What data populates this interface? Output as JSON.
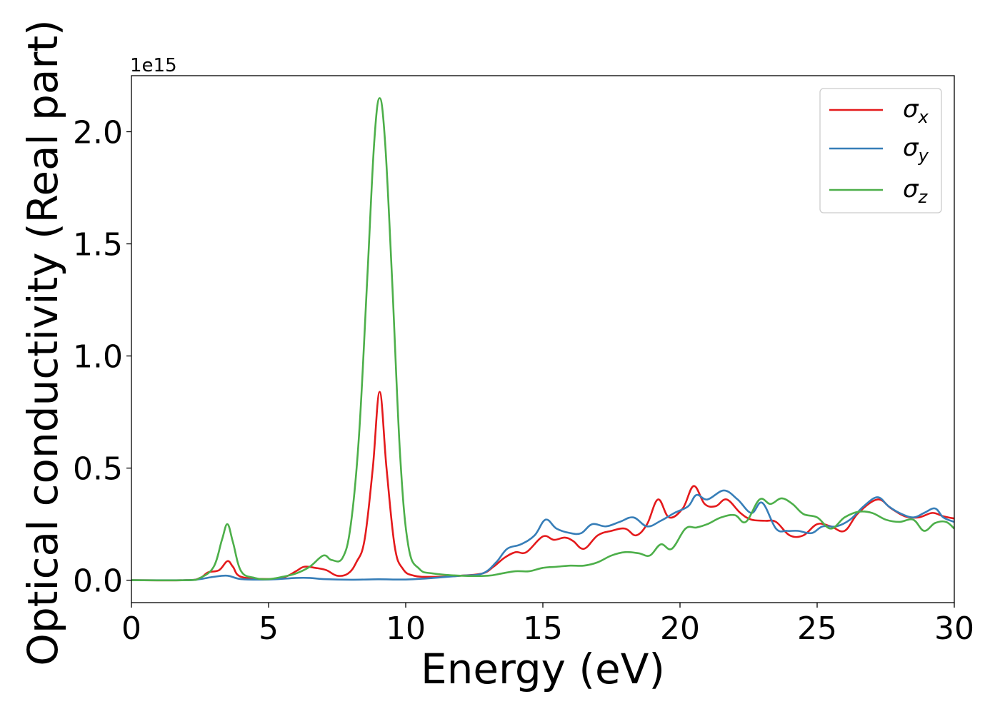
{
  "chart_data": {
    "type": "line",
    "xlabel": "Energy (eV)",
    "ylabel": "Optical conductivity (Real part)",
    "y_offset_label": "1e15",
    "y_multiplier": 1000000000000000.0,
    "xlim": [
      0,
      30
    ],
    "ylim": [
      -0.1,
      2.25
    ],
    "x_ticks": [
      0,
      5,
      10,
      15,
      20,
      25,
      30
    ],
    "x_tick_labels": [
      "0",
      "5",
      "10",
      "15",
      "20",
      "25",
      "30"
    ],
    "y_ticks": [
      0.0,
      0.5,
      1.0,
      1.5,
      2.0
    ],
    "y_tick_labels": [
      "0.0",
      "0.5",
      "1.0",
      "1.5",
      "2.0"
    ],
    "grid": false,
    "legend_position": "top-right",
    "series": [
      {
        "name": "σx",
        "symbol": "σ",
        "subscript": "x",
        "color": "#e41a1c",
        "points": [
          [
            0,
            0
          ],
          [
            2,
            0
          ],
          [
            2.5,
            0.01
          ],
          [
            2.8,
            0.035
          ],
          [
            3.2,
            0.045
          ],
          [
            3.5,
            0.085
          ],
          [
            3.7,
            0.06
          ],
          [
            4,
            0.015
          ],
          [
            5,
            0.005
          ],
          [
            5.6,
            0.015
          ],
          [
            6,
            0.04
          ],
          [
            6.3,
            0.06
          ],
          [
            6.7,
            0.055
          ],
          [
            7.1,
            0.045
          ],
          [
            7.5,
            0.02
          ],
          [
            7.9,
            0.03
          ],
          [
            8.2,
            0.08
          ],
          [
            8.5,
            0.18
          ],
          [
            8.8,
            0.5
          ],
          [
            9.05,
            0.84
          ],
          [
            9.3,
            0.5
          ],
          [
            9.6,
            0.15
          ],
          [
            9.9,
            0.05
          ],
          [
            10.3,
            0.02
          ],
          [
            11,
            0.015
          ],
          [
            12,
            0.02
          ],
          [
            12.8,
            0.03
          ],
          [
            13.2,
            0.06
          ],
          [
            13.6,
            0.1
          ],
          [
            14,
            0.125
          ],
          [
            14.4,
            0.125
          ],
          [
            15,
            0.195
          ],
          [
            15.4,
            0.18
          ],
          [
            15.8,
            0.19
          ],
          [
            16.1,
            0.175
          ],
          [
            16.5,
            0.14
          ],
          [
            17,
            0.2
          ],
          [
            17.5,
            0.22
          ],
          [
            18,
            0.23
          ],
          [
            18.4,
            0.2
          ],
          [
            18.8,
            0.25
          ],
          [
            19.2,
            0.36
          ],
          [
            19.6,
            0.28
          ],
          [
            20.1,
            0.32
          ],
          [
            20.5,
            0.42
          ],
          [
            20.9,
            0.34
          ],
          [
            21.3,
            0.33
          ],
          [
            21.7,
            0.36
          ],
          [
            22.2,
            0.3
          ],
          [
            22.6,
            0.27
          ],
          [
            23.1,
            0.265
          ],
          [
            23.5,
            0.26
          ],
          [
            24,
            0.2
          ],
          [
            24.5,
            0.2
          ],
          [
            25,
            0.25
          ],
          [
            25.5,
            0.24
          ],
          [
            26,
            0.22
          ],
          [
            26.5,
            0.3
          ],
          [
            27.2,
            0.36
          ],
          [
            27.7,
            0.32
          ],
          [
            28.2,
            0.285
          ],
          [
            28.7,
            0.28
          ],
          [
            29.2,
            0.3
          ],
          [
            29.6,
            0.285
          ],
          [
            30,
            0.275
          ]
        ]
      },
      {
        "name": "σy",
        "symbol": "σ",
        "subscript": "y",
        "color": "#377eb8",
        "points": [
          [
            0,
            0
          ],
          [
            2,
            0
          ],
          [
            2.5,
            0.005
          ],
          [
            3,
            0.015
          ],
          [
            3.5,
            0.02
          ],
          [
            4,
            0.005
          ],
          [
            5,
            0.003
          ],
          [
            6,
            0.01
          ],
          [
            6.5,
            0.01
          ],
          [
            7,
            0.005
          ],
          [
            8,
            0.002
          ],
          [
            9,
            0.004
          ],
          [
            10,
            0.003
          ],
          [
            11,
            0.01
          ],
          [
            12,
            0.02
          ],
          [
            12.8,
            0.03
          ],
          [
            13.3,
            0.08
          ],
          [
            13.7,
            0.14
          ],
          [
            14.2,
            0.16
          ],
          [
            14.7,
            0.2
          ],
          [
            15.1,
            0.27
          ],
          [
            15.5,
            0.23
          ],
          [
            16,
            0.21
          ],
          [
            16.4,
            0.21
          ],
          [
            16.8,
            0.25
          ],
          [
            17.3,
            0.24
          ],
          [
            17.8,
            0.26
          ],
          [
            18.3,
            0.28
          ],
          [
            18.8,
            0.24
          ],
          [
            19.3,
            0.265
          ],
          [
            19.8,
            0.3
          ],
          [
            20.3,
            0.33
          ],
          [
            20.6,
            0.38
          ],
          [
            21,
            0.36
          ],
          [
            21.6,
            0.4
          ],
          [
            22.1,
            0.36
          ],
          [
            22.6,
            0.3
          ],
          [
            23,
            0.345
          ],
          [
            23.5,
            0.23
          ],
          [
            23.9,
            0.22
          ],
          [
            24.3,
            0.22
          ],
          [
            24.8,
            0.21
          ],
          [
            25.2,
            0.24
          ],
          [
            25.7,
            0.24
          ],
          [
            26.2,
            0.27
          ],
          [
            26.7,
            0.33
          ],
          [
            27.2,
            0.37
          ],
          [
            27.6,
            0.33
          ],
          [
            28,
            0.3
          ],
          [
            28.5,
            0.28
          ],
          [
            28.9,
            0.3
          ],
          [
            29.3,
            0.32
          ],
          [
            29.6,
            0.28
          ],
          [
            30,
            0.26
          ]
        ]
      },
      {
        "name": "σz",
        "symbol": "σ",
        "subscript": "z",
        "color": "#4daf4a",
        "points": [
          [
            0,
            0
          ],
          [
            2,
            0
          ],
          [
            2.5,
            0.01
          ],
          [
            3,
            0.06
          ],
          [
            3.3,
            0.18
          ],
          [
            3.5,
            0.25
          ],
          [
            3.7,
            0.17
          ],
          [
            4,
            0.04
          ],
          [
            4.5,
            0.01
          ],
          [
            5,
            0.005
          ],
          [
            5.5,
            0.015
          ],
          [
            6,
            0.03
          ],
          [
            6.5,
            0.06
          ],
          [
            7,
            0.11
          ],
          [
            7.3,
            0.09
          ],
          [
            7.7,
            0.1
          ],
          [
            8,
            0.25
          ],
          [
            8.3,
            0.65
          ],
          [
            8.6,
            1.35
          ],
          [
            8.85,
            1.95
          ],
          [
            9.05,
            2.15
          ],
          [
            9.25,
            1.95
          ],
          [
            9.5,
            1.35
          ],
          [
            9.8,
            0.55
          ],
          [
            10.1,
            0.15
          ],
          [
            10.5,
            0.05
          ],
          [
            11,
            0.03
          ],
          [
            12,
            0.02
          ],
          [
            13,
            0.02
          ],
          [
            13.5,
            0.03
          ],
          [
            14,
            0.04
          ],
          [
            14.5,
            0.04
          ],
          [
            15,
            0.055
          ],
          [
            15.5,
            0.06
          ],
          [
            16,
            0.065
          ],
          [
            16.5,
            0.065
          ],
          [
            17,
            0.08
          ],
          [
            17.5,
            0.11
          ],
          [
            18,
            0.125
          ],
          [
            18.5,
            0.12
          ],
          [
            18.9,
            0.11
          ],
          [
            19.3,
            0.16
          ],
          [
            19.7,
            0.14
          ],
          [
            20.2,
            0.23
          ],
          [
            20.6,
            0.235
          ],
          [
            21,
            0.25
          ],
          [
            21.5,
            0.28
          ],
          [
            22,
            0.29
          ],
          [
            22.4,
            0.26
          ],
          [
            22.9,
            0.36
          ],
          [
            23.3,
            0.34
          ],
          [
            23.7,
            0.365
          ],
          [
            24.1,
            0.34
          ],
          [
            24.5,
            0.295
          ],
          [
            25,
            0.28
          ],
          [
            25.5,
            0.23
          ],
          [
            26,
            0.28
          ],
          [
            26.5,
            0.305
          ],
          [
            27,
            0.3
          ],
          [
            27.5,
            0.27
          ],
          [
            28,
            0.26
          ],
          [
            28.5,
            0.27
          ],
          [
            28.9,
            0.22
          ],
          [
            29.3,
            0.255
          ],
          [
            29.7,
            0.26
          ],
          [
            30,
            0.23
          ]
        ]
      }
    ]
  }
}
